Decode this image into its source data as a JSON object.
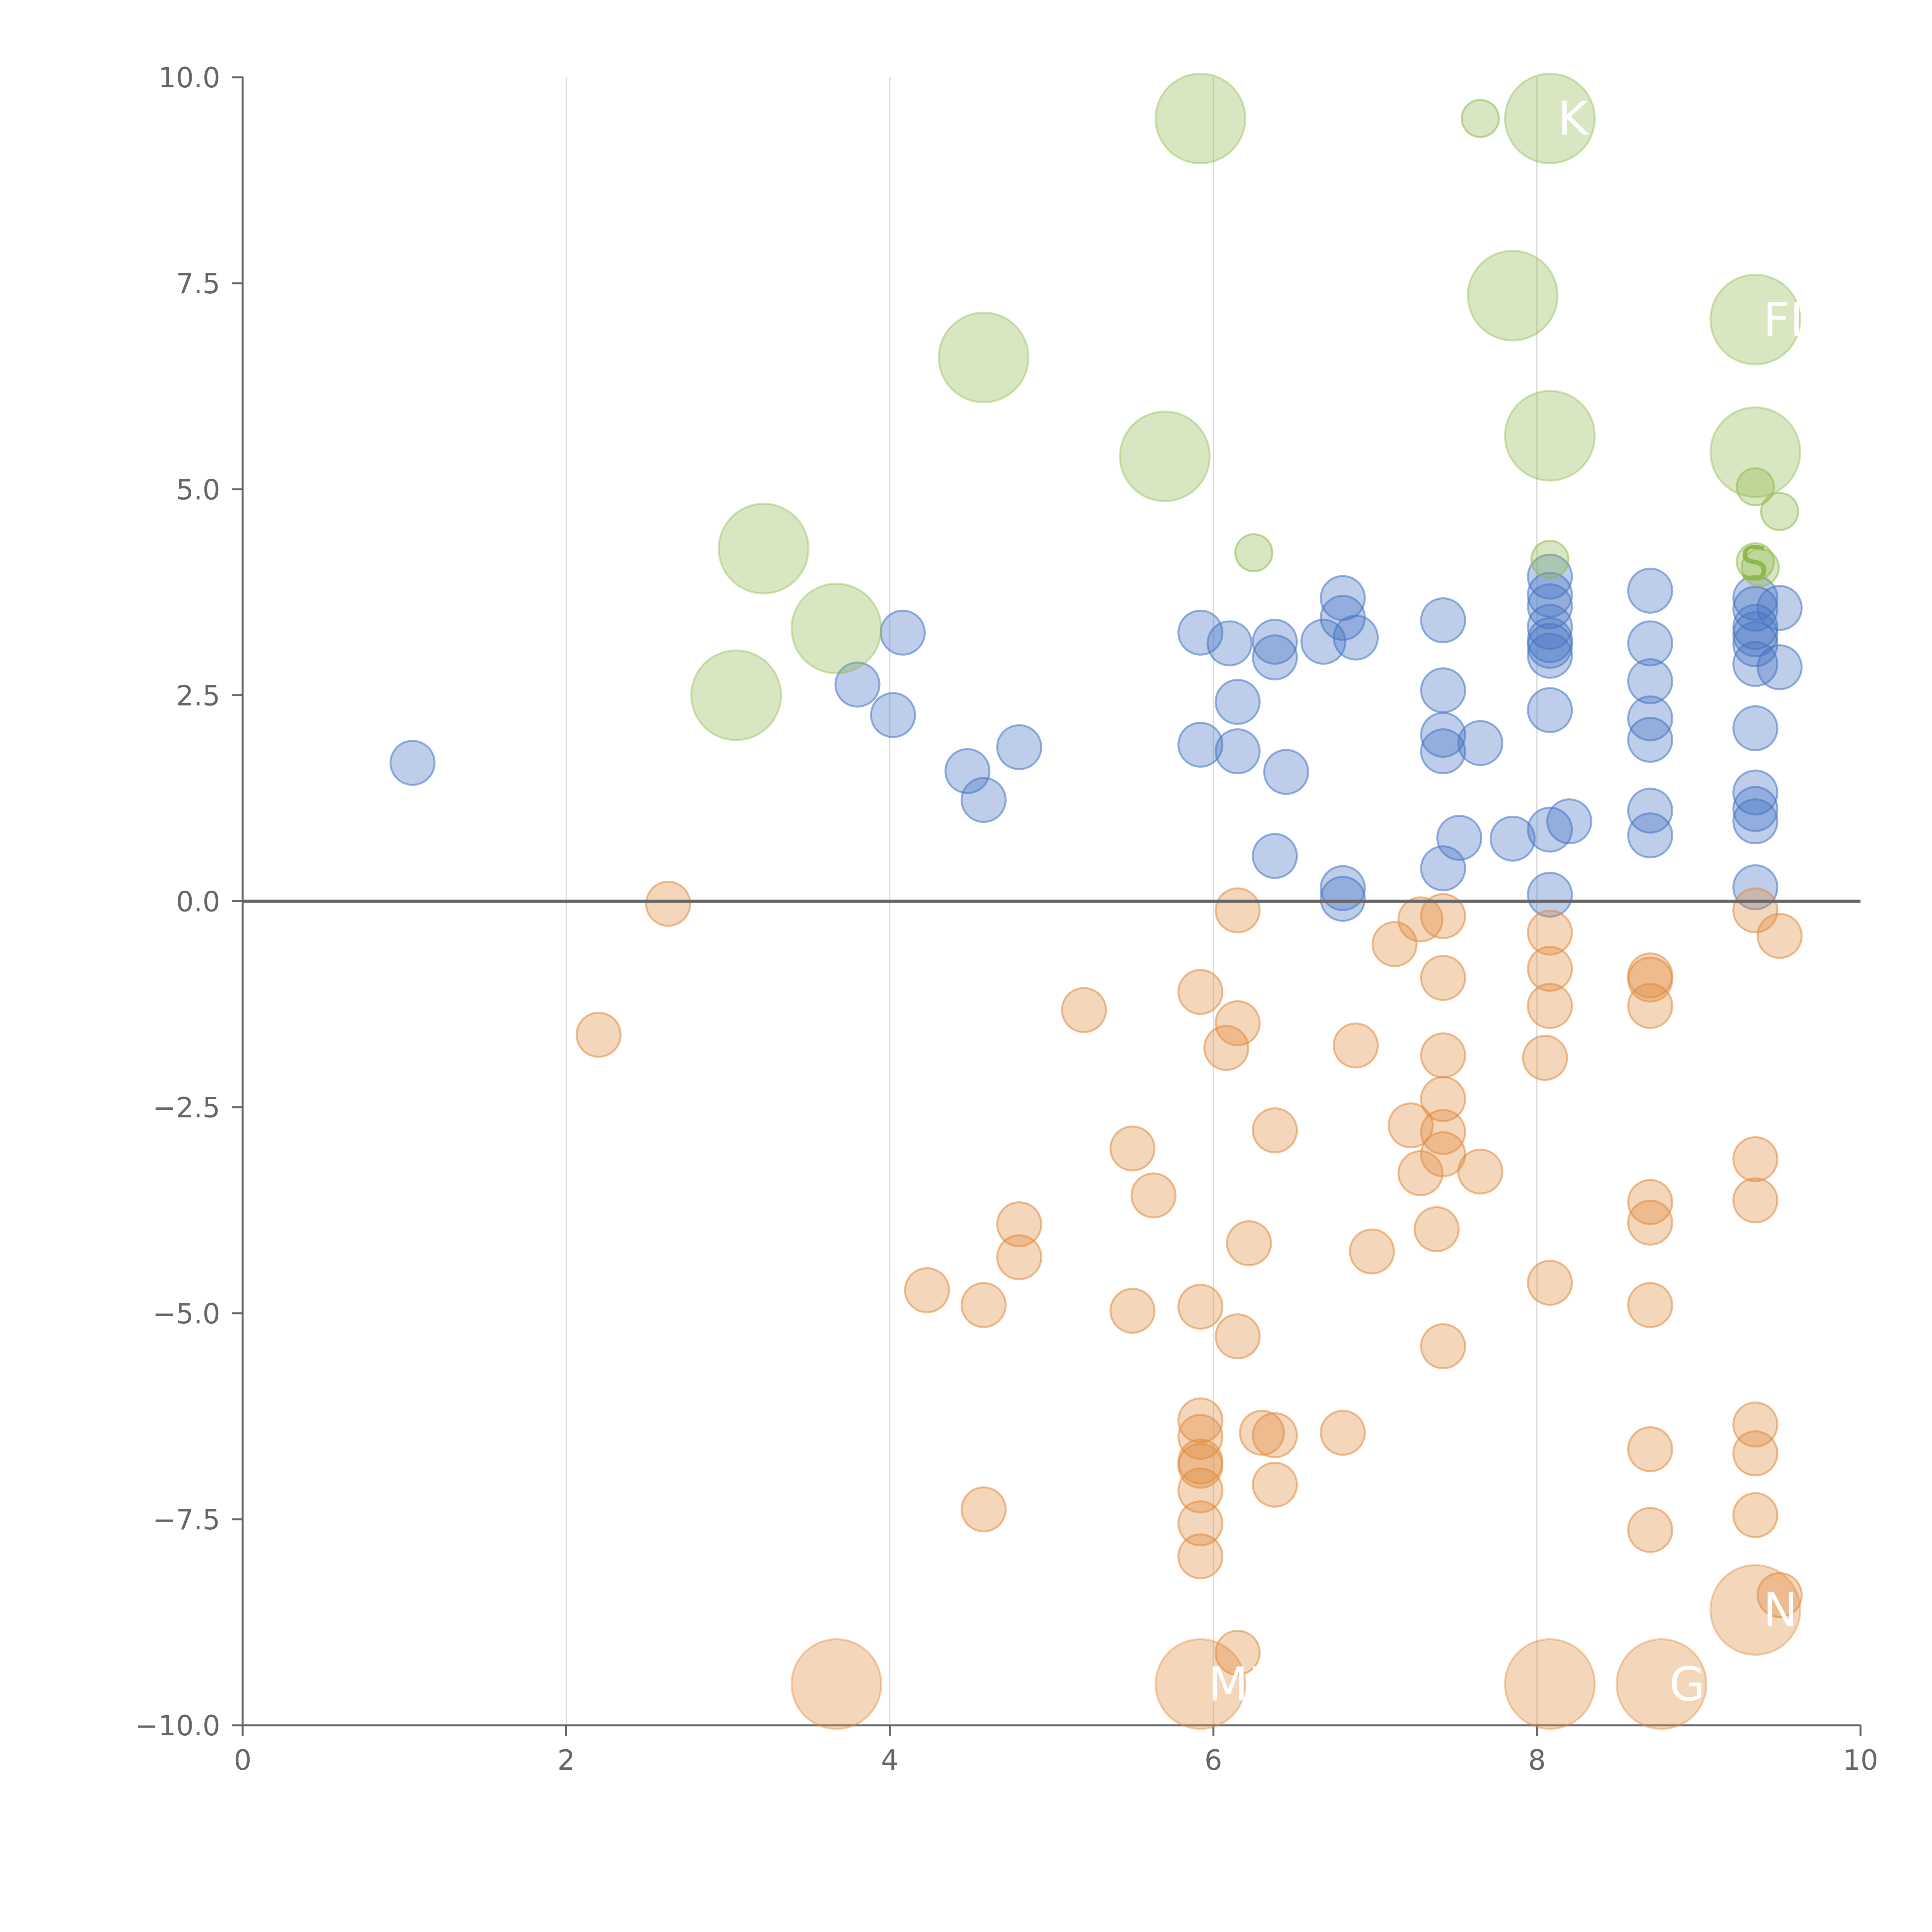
{
  "chart_data": {
    "type": "scatter",
    "title": "",
    "xlabel": "",
    "ylabel": "",
    "xlim": [
      0,
      10
    ],
    "ylim": [
      -10,
      10
    ],
    "x_ticks": [
      "0",
      "2",
      "4",
      "6",
      "8",
      "10"
    ],
    "y_ticks": [
      "−10.0",
      "−7.5",
      "−5.0",
      "−2.5",
      "0.0",
      "2.5",
      "5.0",
      "7.5",
      "10.0"
    ],
    "x_tick_values": [
      0,
      2,
      4,
      6,
      8,
      10
    ],
    "y_tick_values": [
      -10,
      -7.5,
      -5,
      -2.5,
      0,
      2.5,
      5,
      7.5,
      10
    ],
    "grid": "vertical",
    "zero_line": true,
    "colors": {
      "blue": "#4472c4",
      "orange": "#e08a3c",
      "green": "#8fb84e",
      "axis": "#666666",
      "grid": "#d9d9d9"
    },
    "series": [
      {
        "name": "blue",
        "color": "#4472c4",
        "points": [
          [
            1.05,
            1.68
          ],
          [
            3.8,
            2.63
          ],
          [
            4.08,
            3.26
          ],
          [
            4.02,
            2.26
          ],
          [
            4.48,
            1.58
          ],
          [
            4.58,
            1.23
          ],
          [
            4.8,
            1.87
          ],
          [
            5.92,
            3.26
          ],
          [
            6.1,
            3.13
          ],
          [
            6.38,
            3.15
          ],
          [
            6.38,
            2.96
          ],
          [
            6.15,
            2.42
          ],
          [
            5.92,
            1.9
          ],
          [
            6.15,
            1.82
          ],
          [
            6.45,
            1.57
          ],
          [
            6.38,
            0.55
          ],
          [
            6.8,
            3.68
          ],
          [
            6.8,
            3.44
          ],
          [
            6.88,
            3.2
          ],
          [
            6.68,
            3.15
          ],
          [
            6.8,
            0.16
          ],
          [
            6.8,
            0.03
          ],
          [
            7.42,
            3.41
          ],
          [
            7.42,
            2.56
          ],
          [
            7.42,
            2.02
          ],
          [
            7.42,
            1.82
          ],
          [
            7.65,
            1.92
          ],
          [
            7.52,
            0.77
          ],
          [
            7.42,
            0.4
          ],
          [
            7.85,
            0.76
          ],
          [
            8.08,
            3.94
          ],
          [
            8.08,
            3.72
          ],
          [
            8.08,
            3.58
          ],
          [
            8.08,
            3.33
          ],
          [
            8.08,
            3.17
          ],
          [
            8.08,
            3.1
          ],
          [
            8.08,
            2.98
          ],
          [
            8.08,
            2.32
          ],
          [
            8.08,
            0.87
          ],
          [
            8.2,
            0.97
          ],
          [
            8.08,
            0.08
          ],
          [
            8.7,
            3.77
          ],
          [
            8.7,
            3.13
          ],
          [
            8.7,
            2.67
          ],
          [
            8.7,
            2.22
          ],
          [
            8.7,
            1.96
          ],
          [
            8.7,
            1.1
          ],
          [
            8.7,
            0.8
          ],
          [
            9.35,
            3.68
          ],
          [
            9.35,
            3.55
          ],
          [
            9.35,
            3.33
          ],
          [
            9.35,
            3.24
          ],
          [
            9.35,
            3.12
          ],
          [
            9.35,
            2.88
          ],
          [
            9.5,
            3.56
          ],
          [
            9.5,
            2.84
          ],
          [
            9.35,
            2.1
          ],
          [
            9.35,
            1.32
          ],
          [
            9.35,
            1.12
          ],
          [
            9.35,
            0.97
          ],
          [
            9.35,
            0.17
          ]
        ]
      },
      {
        "name": "orange",
        "color": "#e08a3c",
        "points": [
          [
            2.63,
            -0.03
          ],
          [
            2.2,
            -1.62
          ],
          [
            4.23,
            -4.72
          ],
          [
            4.58,
            -4.9
          ],
          [
            4.8,
            -3.92
          ],
          [
            4.8,
            -4.32
          ],
          [
            4.58,
            -7.38
          ],
          [
            5.2,
            -1.32
          ],
          [
            5.5,
            -3.0
          ],
          [
            5.63,
            -3.57
          ],
          [
            5.5,
            -4.97
          ],
          [
            5.92,
            -1.1
          ],
          [
            6.15,
            -0.11
          ],
          [
            6.15,
            -1.48
          ],
          [
            6.08,
            -1.78
          ],
          [
            6.38,
            -2.78
          ],
          [
            6.22,
            -4.15
          ],
          [
            6.15,
            -5.28
          ],
          [
            5.92,
            -4.92
          ],
          [
            5.92,
            -6.3
          ],
          [
            5.92,
            -6.5
          ],
          [
            5.92,
            -6.8
          ],
          [
            5.92,
            -6.85
          ],
          [
            5.92,
            -7.15
          ],
          [
            5.92,
            -7.55
          ],
          [
            5.92,
            -7.95
          ],
          [
            6.3,
            -6.45
          ],
          [
            6.38,
            -6.48
          ],
          [
            6.38,
            -7.08
          ],
          [
            6.15,
            -9.12
          ],
          [
            6.8,
            -6.45
          ],
          [
            6.88,
            -1.75
          ],
          [
            6.98,
            -4.25
          ],
          [
            7.12,
            -0.52
          ],
          [
            7.28,
            -0.22
          ],
          [
            7.22,
            -2.72
          ],
          [
            7.28,
            -3.3
          ],
          [
            7.38,
            -3.98
          ],
          [
            7.42,
            -0.18
          ],
          [
            7.42,
            -0.93
          ],
          [
            7.42,
            -1.87
          ],
          [
            7.42,
            -2.4
          ],
          [
            7.42,
            -2.8
          ],
          [
            7.42,
            -3.07
          ],
          [
            7.65,
            -3.28
          ],
          [
            7.42,
            -5.4
          ],
          [
            8.08,
            -0.38
          ],
          [
            8.08,
            -0.82
          ],
          [
            8.08,
            -1.27
          ],
          [
            8.05,
            -1.9
          ],
          [
            8.08,
            -4.63
          ],
          [
            8.7,
            -0.9
          ],
          [
            8.7,
            -0.95
          ],
          [
            8.7,
            -1.27
          ],
          [
            8.7,
            -3.65
          ],
          [
            8.7,
            -3.9
          ],
          [
            8.7,
            -4.9
          ],
          [
            8.7,
            -6.65
          ],
          [
            8.7,
            -7.63
          ],
          [
            9.35,
            -0.11
          ],
          [
            9.5,
            -0.42
          ],
          [
            9.35,
            -3.13
          ],
          [
            9.35,
            -3.63
          ],
          [
            9.35,
            -6.35
          ],
          [
            9.35,
            -6.7
          ],
          [
            9.35,
            -7.45
          ],
          [
            9.5,
            -8.42
          ]
        ]
      },
      {
        "name": "green",
        "color": "#8fb84e",
        "points": [
          [
            7.65,
            9.5
          ],
          [
            6.25,
            4.23
          ],
          [
            9.35,
            5.03
          ],
          [
            9.5,
            4.73
          ],
          [
            8.08,
            4.15
          ],
          [
            9.35,
            4.12
          ],
          [
            9.38,
            4.05
          ]
        ]
      }
    ],
    "large_bubbles": [
      {
        "series": "green",
        "x": 5.92,
        "y": 9.5,
        "label": ""
      },
      {
        "series": "green",
        "x": 8.08,
        "y": 9.5,
        "label": "K"
      },
      {
        "series": "green",
        "x": 7.85,
        "y": 7.35,
        "label": ""
      },
      {
        "series": "green",
        "x": 9.35,
        "y": 7.06,
        "label": "FI"
      },
      {
        "series": "green",
        "x": 4.58,
        "y": 6.6,
        "label": ""
      },
      {
        "series": "green",
        "x": 5.7,
        "y": 5.4,
        "label": ""
      },
      {
        "series": "green",
        "x": 8.08,
        "y": 5.65,
        "label": ""
      },
      {
        "series": "green",
        "x": 9.35,
        "y": 5.45,
        "label": ""
      },
      {
        "series": "green",
        "x": 3.22,
        "y": 4.28,
        "label": ""
      },
      {
        "series": "green",
        "x": 3.67,
        "y": 3.31,
        "label": ""
      },
      {
        "series": "green",
        "x": 3.05,
        "y": 2.5,
        "label": ""
      },
      {
        "series": "orange",
        "x": 3.67,
        "y": -9.5,
        "label": ""
      },
      {
        "series": "orange",
        "x": 5.92,
        "y": -9.5,
        "label": "MIN"
      },
      {
        "series": "orange",
        "x": 8.08,
        "y": -9.5,
        "label": ""
      },
      {
        "series": "orange",
        "x": 8.77,
        "y": -9.5,
        "label": "G"
      },
      {
        "series": "orange",
        "x": 9.35,
        "y": -8.6,
        "label": "N"
      }
    ],
    "annotations": [
      {
        "text": "S",
        "x": 9.3,
        "y": 4.1,
        "color": "#8fb84e"
      }
    ]
  }
}
